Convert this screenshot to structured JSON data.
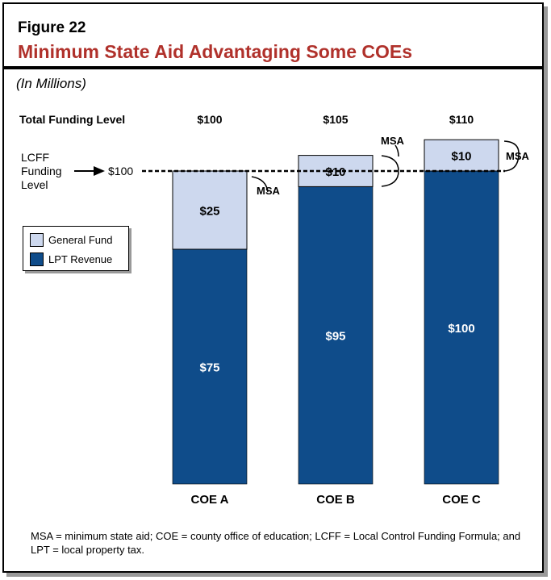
{
  "figure_label": "Figure 22",
  "title": "Minimum State Aid Advantaging Some COEs",
  "subtitle": "(In Millions)",
  "total_label": "Total Funding Level",
  "lcff_label": [
    "LCFF",
    "Funding",
    "Level"
  ],
  "lcff_value": "$100",
  "msa_label": "MSA",
  "colors": {
    "general_fund": "#cdd8ee",
    "lpt": "#0f4c8a",
    "title": "#b0312b"
  },
  "legend": [
    {
      "label": "General Fund",
      "color": "#cdd8ee"
    },
    {
      "label": "LPT Revenue",
      "color": "#0f4c8a"
    }
  ],
  "note": "MSA = minimum state aid; COE = county office of education; LCFF = Local Control Funding Formula; and LPT = local property tax.",
  "chart_data": {
    "type": "bar",
    "stacked": true,
    "categories": [
      "COE A",
      "COE B",
      "COE C"
    ],
    "totals": [
      "$100",
      "$105",
      "$110"
    ],
    "lcff_level": 100,
    "series": [
      {
        "name": "LPT Revenue",
        "values": [
          75,
          95,
          100
        ],
        "labels": [
          "$75",
          "$95",
          "$100"
        ]
      },
      {
        "name": "General Fund",
        "values": [
          25,
          10,
          10
        ],
        "labels": [
          "$25",
          "$10",
          "$10"
        ]
      }
    ],
    "ylim": [
      0,
      110
    ]
  }
}
